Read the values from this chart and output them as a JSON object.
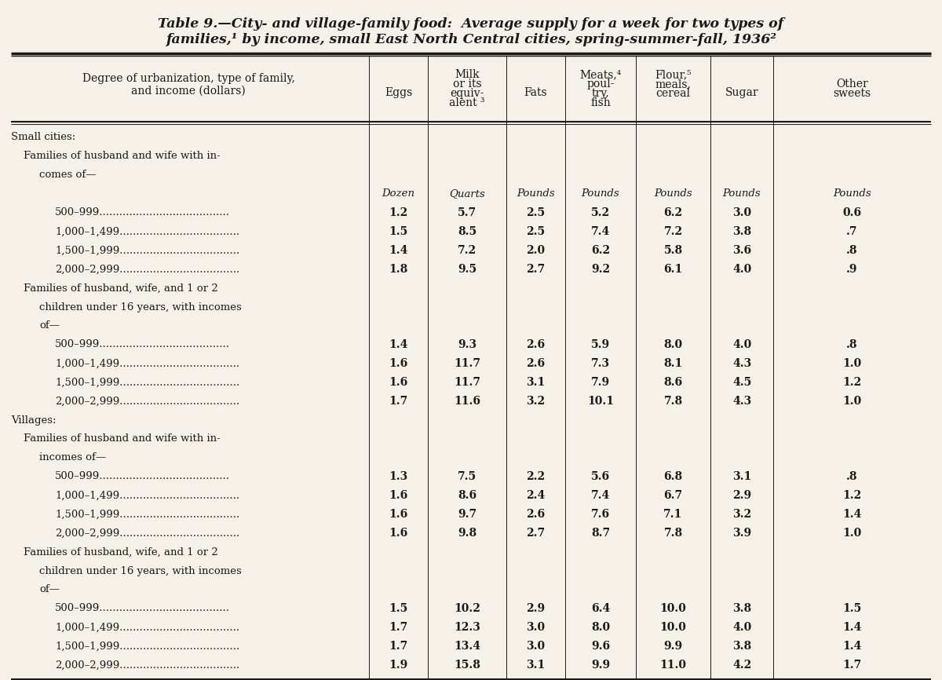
{
  "title_line1": "TABLE 9.—City- and village-family food:  Average supply for a week for two types of",
  "title_line2": "families,¹ by income, small East North Central cities, spring-summer-fall, 1936²",
  "col_headers": [
    [
      "Degree of urbanization, type of family,\nand income (dollars)",
      "",
      ""
    ],
    [
      "Eggs",
      "",
      ""
    ],
    [
      "Milk\nor its\nequiv-\nalent ³",
      "",
      ""
    ],
    [
      "Fats",
      "",
      ""
    ],
    [
      "Meats,⁴\npoul-\ntry,\nfish",
      "",
      ""
    ],
    [
      "Flour,⁵\nmeals,\ncereal",
      "",
      ""
    ],
    [
      "Sugar",
      "",
      ""
    ],
    [
      "Other\nsweets",
      "",
      ""
    ]
  ],
  "col_header_texts": [
    "Degree of urbanization, type of family,\nand income (dollars)",
    "Eggs",
    "Milk\nor its\nequiv-\nalent ³",
    "Fats",
    "Meats,⁴\npoul-\ntry,\nfish",
    "Flour,⁵\nmeals,\ncereal",
    "Sugar",
    "Other\nsweets"
  ],
  "rows": [
    {
      "label": "Small cities:",
      "level": 0,
      "values": [
        "",
        "",
        "",
        "",
        "",
        "",
        ""
      ],
      "bold": false,
      "italic": false,
      "units": false
    },
    {
      "label": "Families of husband and wife with in-",
      "level": 1,
      "values": [
        "",
        "",
        "",
        "",
        "",
        "",
        ""
      ],
      "bold": false,
      "italic": false,
      "units": false
    },
    {
      "label": "comes of—",
      "level": 2,
      "values": [
        "",
        "",
        "",
        "",
        "",
        "",
        ""
      ],
      "bold": false,
      "italic": false,
      "units": false
    },
    {
      "label": "",
      "level": 3,
      "values": [
        "Dozen",
        "Quarts",
        "Pounds",
        "Pounds",
        "Pounds",
        "Pounds",
        "Pounds"
      ],
      "bold": false,
      "italic": true,
      "units": true
    },
    {
      "label": "500–999.......................................",
      "level": 3,
      "values": [
        "1.2",
        "5.7",
        "2.5",
        "5.2",
        "6.2",
        "3.0",
        "0.6"
      ],
      "bold": false,
      "italic": false,
      "units": false
    },
    {
      "label": "1,000–1,499....................................",
      "level": 3,
      "values": [
        "1.5",
        "8.5",
        "2.5",
        "7.4",
        "7.2",
        "3.8",
        ".7"
      ],
      "bold": false,
      "italic": false,
      "units": false
    },
    {
      "label": "1,500–1,999....................................",
      "level": 3,
      "values": [
        "1.4",
        "7.2",
        "2.0",
        "6.2",
        "5.8",
        "3.6",
        ".8"
      ],
      "bold": false,
      "italic": false,
      "units": false
    },
    {
      "label": "2,000–2,999....................................",
      "level": 3,
      "values": [
        "1.8",
        "9.5",
        "2.7",
        "9.2",
        "6.1",
        "4.0",
        ".9"
      ],
      "bold": false,
      "italic": false,
      "units": false
    },
    {
      "label": "Families of husband, wife, and 1 or 2",
      "level": 1,
      "values": [
        "",
        "",
        "",
        "",
        "",
        "",
        ""
      ],
      "bold": false,
      "italic": false,
      "units": false
    },
    {
      "label": "children under 16 years, with incomes",
      "level": 2,
      "values": [
        "",
        "",
        "",
        "",
        "",
        "",
        ""
      ],
      "bold": false,
      "italic": false,
      "units": false
    },
    {
      "label": "of—",
      "level": 2,
      "values": [
        "",
        "",
        "",
        "",
        "",
        "",
        ""
      ],
      "bold": false,
      "italic": false,
      "units": false
    },
    {
      "label": "500–999.......................................",
      "level": 3,
      "values": [
        "1.4",
        "9.3",
        "2.6",
        "5.9",
        "8.0",
        "4.0",
        ".8"
      ],
      "bold": false,
      "italic": false,
      "units": false
    },
    {
      "label": "1,000–1,499....................................",
      "level": 3,
      "values": [
        "1.6",
        "11.7",
        "2.6",
        "7.3",
        "8.1",
        "4.3",
        "1.0"
      ],
      "bold": false,
      "italic": false,
      "units": false
    },
    {
      "label": "1,500–1,999....................................",
      "level": 3,
      "values": [
        "1.6",
        "11.7",
        "3.1",
        "7.9",
        "8.6",
        "4.5",
        "1.2"
      ],
      "bold": false,
      "italic": false,
      "units": false
    },
    {
      "label": "2,000–2,999....................................",
      "level": 3,
      "values": [
        "1.7",
        "11.6",
        "3.2",
        "10.1",
        "7.8",
        "4.3",
        "1.0"
      ],
      "bold": false,
      "italic": false,
      "units": false
    },
    {
      "label": "Villages:",
      "level": 0,
      "values": [
        "",
        "",
        "",
        "",
        "",
        "",
        ""
      ],
      "bold": false,
      "italic": false,
      "units": false
    },
    {
      "label": "Families of husband and wife with in-",
      "level": 1,
      "values": [
        "",
        "",
        "",
        "",
        "",
        "",
        ""
      ],
      "bold": false,
      "italic": false,
      "units": false
    },
    {
      "label": "incomes of—",
      "level": 2,
      "values": [
        "",
        "",
        "",
        "",
        "",
        "",
        ""
      ],
      "bold": false,
      "italic": false,
      "units": false
    },
    {
      "label": "500–999.......................................",
      "level": 3,
      "values": [
        "1.3",
        "7.5",
        "2.2",
        "5.6",
        "6.8",
        "3.1",
        ".8"
      ],
      "bold": false,
      "italic": false,
      "units": false
    },
    {
      "label": "1,000–1,499....................................",
      "level": 3,
      "values": [
        "1.6",
        "8.6",
        "2.4",
        "7.4",
        "6.7",
        "2.9",
        "1.2"
      ],
      "bold": false,
      "italic": false,
      "units": false
    },
    {
      "label": "1,500–1,999....................................",
      "level": 3,
      "values": [
        "1.6",
        "9.7",
        "2.6",
        "7.6",
        "7.1",
        "3.2",
        "1.4"
      ],
      "bold": false,
      "italic": false,
      "units": false
    },
    {
      "label": "2,000–2,999....................................",
      "level": 3,
      "values": [
        "1.6",
        "9.8",
        "2.7",
        "8.7",
        "7.8",
        "3.9",
        "1.0"
      ],
      "bold": false,
      "italic": false,
      "units": false
    },
    {
      "label": "Families of husband, wife, and 1 or 2",
      "level": 1,
      "values": [
        "",
        "",
        "",
        "",
        "",
        "",
        ""
      ],
      "bold": false,
      "italic": false,
      "units": false
    },
    {
      "label": "children under 16 years, with incomes",
      "level": 2,
      "values": [
        "",
        "",
        "",
        "",
        "",
        "",
        ""
      ],
      "bold": false,
      "italic": false,
      "units": false
    },
    {
      "label": "of—",
      "level": 2,
      "values": [
        "",
        "",
        "",
        "",
        "",
        "",
        ""
      ],
      "bold": false,
      "italic": false,
      "units": false
    },
    {
      "label": "500–999.......................................",
      "level": 3,
      "values": [
        "1.5",
        "10.2",
        "2.9",
        "6.4",
        "10.0",
        "3.8",
        "1.5"
      ],
      "bold": false,
      "italic": false,
      "units": false
    },
    {
      "label": "1,000–1,499....................................",
      "level": 3,
      "values": [
        "1.7",
        "12.3",
        "3.0",
        "8.0",
        "10.0",
        "4.0",
        "1.4"
      ],
      "bold": false,
      "italic": false,
      "units": false
    },
    {
      "label": "1,500–1,999....................................",
      "level": 3,
      "values": [
        "1.7",
        "13.4",
        "3.0",
        "9.6",
        "9.9",
        "3.8",
        "1.4"
      ],
      "bold": false,
      "italic": false,
      "units": false
    },
    {
      "label": "2,000–2,999....................................",
      "level": 3,
      "values": [
        "1.9",
        "15.8",
        "3.1",
        "9.9",
        "11.0",
        "4.2",
        "1.7"
      ],
      "bold": false,
      "italic": false,
      "units": false
    }
  ],
  "bg_color": "#f5f0e8",
  "text_color": "#1a1a1a",
  "line_color": "#1a1a1a"
}
